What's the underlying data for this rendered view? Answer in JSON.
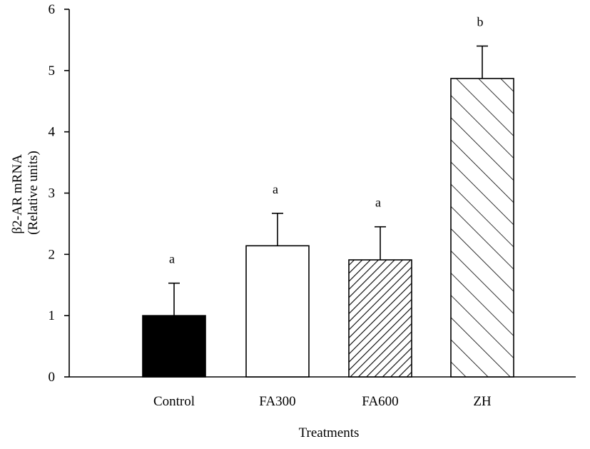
{
  "chart_data": {
    "type": "bar",
    "title": "",
    "xlabel": "Treatments",
    "ylabel_line1": "β2-AR mRNA",
    "ylabel_line2": "(Relative units)",
    "ylim": [
      0,
      6
    ],
    "yticks": [
      0,
      1,
      2,
      3,
      4,
      5,
      6
    ],
    "grid": false,
    "categories": [
      "Control",
      "FA300",
      "FA600",
      "ZH"
    ],
    "values": [
      1.0,
      2.14,
      1.91,
      4.87
    ],
    "errors": [
      0.53,
      0.53,
      0.54,
      0.53
    ],
    "significance_letters": [
      "a",
      "a",
      "a",
      "b"
    ],
    "fills": [
      "solid-black",
      "white",
      "dense-diagonal-hatch",
      "sparse-diagonal-hatch"
    ]
  }
}
